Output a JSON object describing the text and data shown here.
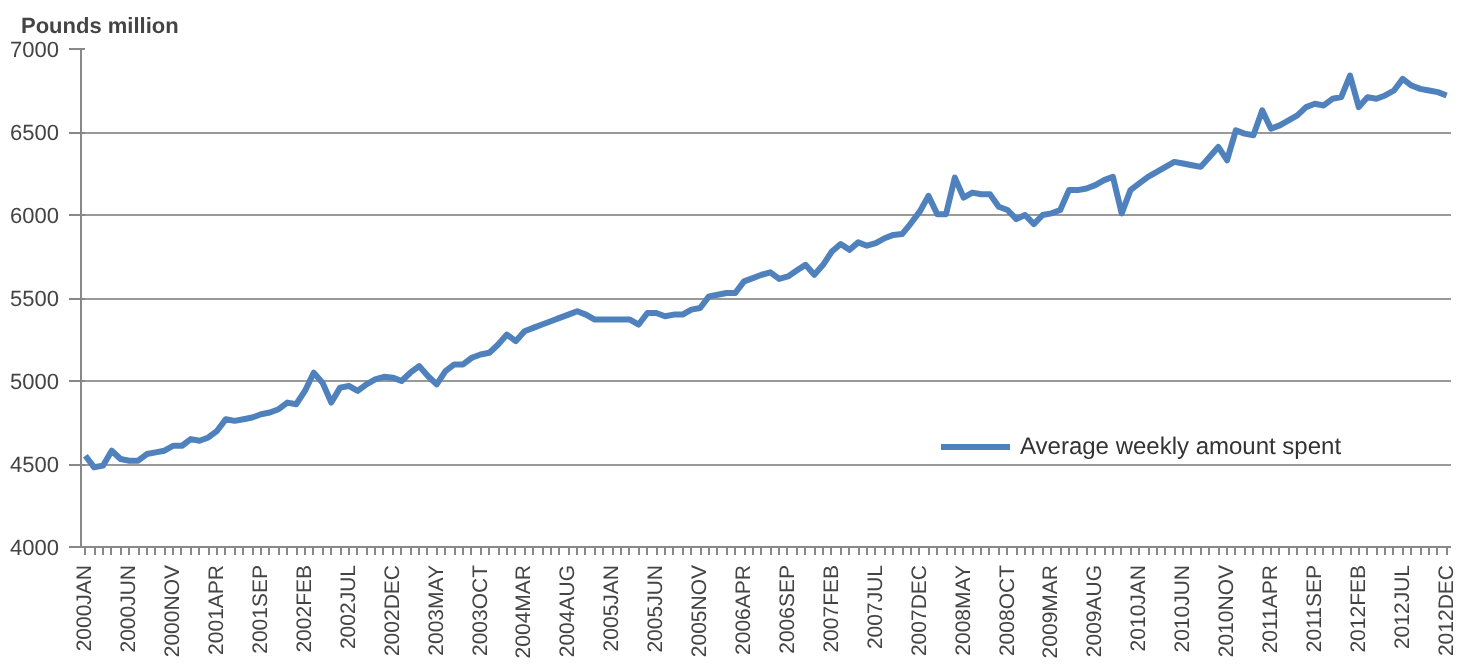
{
  "chart_data": {
    "type": "line",
    "ylabel": "Pounds million",
    "categories": [
      "2000JAN",
      null,
      null,
      null,
      null,
      "2000JUN",
      null,
      null,
      null,
      null,
      "2000NOV",
      null,
      null,
      null,
      null,
      "2001APR",
      null,
      null,
      null,
      null,
      "2001SEP",
      null,
      null,
      null,
      null,
      "2002FEB",
      null,
      null,
      null,
      null,
      "2002JUL",
      null,
      null,
      null,
      null,
      "2002DEC",
      null,
      null,
      null,
      null,
      "2003MAY",
      null,
      null,
      null,
      null,
      "2003OCT",
      null,
      null,
      null,
      null,
      "2004MAR",
      null,
      null,
      null,
      null,
      "2004AUG",
      null,
      null,
      null,
      null,
      "2005JAN",
      null,
      null,
      null,
      null,
      "2005JUN",
      null,
      null,
      null,
      null,
      "2005NOV",
      null,
      null,
      null,
      null,
      "2006APR",
      null,
      null,
      null,
      null,
      "2006SEP",
      null,
      null,
      null,
      null,
      "2007FEB",
      null,
      null,
      null,
      null,
      "2007JUL",
      null,
      null,
      null,
      null,
      "2007DEC",
      null,
      null,
      null,
      null,
      "2008MAY",
      null,
      null,
      null,
      null,
      "2008OCT",
      null,
      null,
      null,
      null,
      "2009MAR",
      null,
      null,
      null,
      null,
      "2009AUG",
      null,
      null,
      null,
      null,
      "2010JAN",
      null,
      null,
      null,
      null,
      "2010JUN",
      null,
      null,
      null,
      null,
      "2010NOV",
      null,
      null,
      null,
      null,
      "2011APR",
      null,
      null,
      null,
      null,
      "2011SEP",
      null,
      null,
      null,
      null,
      "2012FEB",
      null,
      null,
      null,
      null,
      "2012JUL",
      null,
      null,
      null,
      null,
      "2012DEC"
    ],
    "series": [
      {
        "name": "Average weekly amount spent",
        "color": "#4f81bd",
        "values": [
          4550,
          4480,
          4490,
          4580,
          4530,
          4520,
          4520,
          4560,
          4570,
          4580,
          4610,
          4610,
          4650,
          4640,
          4660,
          4700,
          4770,
          4760,
          4770,
          4780,
          4800,
          4810,
          4830,
          4870,
          4860,
          4940,
          5050,
          4990,
          4870,
          4960,
          4970,
          4940,
          4980,
          5010,
          5025,
          5020,
          5000,
          5050,
          5090,
          5030,
          4980,
          5060,
          5100,
          5100,
          5140,
          5160,
          5170,
          5220,
          5280,
          5240,
          5300,
          5320,
          5340,
          5360,
          5380,
          5400,
          5420,
          5400,
          5370,
          5370,
          5370,
          5370,
          5370,
          5340,
          5410,
          5410,
          5390,
          5400,
          5400,
          5430,
          5440,
          5510,
          5520,
          5530,
          5530,
          5600,
          5620,
          5640,
          5655,
          5615,
          5630,
          5665,
          5700,
          5640,
          5700,
          5780,
          5825,
          5790,
          5835,
          5815,
          5830,
          5860,
          5880,
          5885,
          5950,
          6020,
          6115,
          6005,
          6005,
          6225,
          6105,
          6135,
          6125,
          6125,
          6050,
          6030,
          5975,
          6000,
          5945,
          6000,
          6010,
          6030,
          6150,
          6150,
          6160,
          6180,
          6210,
          6230,
          6010,
          6150,
          6190,
          6230,
          6260,
          6290,
          6320,
          6310,
          6300,
          6290,
          6350,
          6410,
          6330,
          6510,
          6490,
          6480,
          6630,
          6520,
          6540,
          6570,
          6600,
          6650,
          6670,
          6660,
          6700,
          6710,
          6840,
          6650,
          6710,
          6700,
          6720,
          6750,
          6820,
          6780,
          6760,
          6750,
          6740,
          6720
        ]
      }
    ],
    "ylim": [
      4000,
      7000
    ],
    "yticks": [
      4000,
      4500,
      5000,
      5500,
      6000,
      6500,
      7000
    ],
    "grid": "y",
    "legend": "right",
    "marker": "none",
    "line_style": "solid"
  }
}
